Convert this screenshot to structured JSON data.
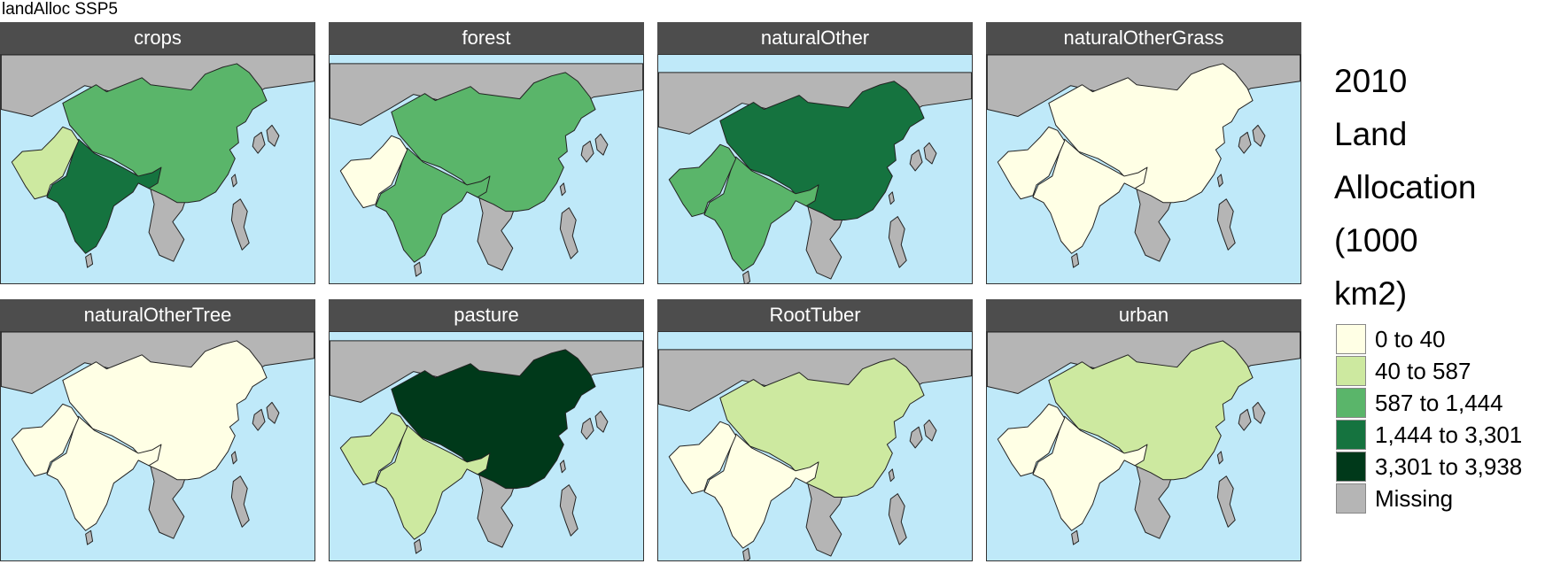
{
  "title": "landAlloc SSP5",
  "legend": {
    "title_lines": [
      "2010",
      "Land",
      "Allocation",
      "(1000",
      "km2)"
    ],
    "items": [
      {
        "label": "0 to 40",
        "color": "#ffffe5"
      },
      {
        "label": "40 to 587",
        "color": "#cde9a0"
      },
      {
        "label": "587 to 1,444",
        "color": "#5ab56a"
      },
      {
        "label": "1,444 to 3,301",
        "color": "#15733f"
      },
      {
        "label": "3,301 to 3,938",
        "color": "#00391a"
      },
      {
        "label": "Missing",
        "color": "#b5b5b5"
      }
    ]
  },
  "colors": {
    "ocean": "#bfe9f9",
    "land": "#b5b5b5",
    "border": "#222222"
  },
  "panels": [
    {
      "name": "crops",
      "china": 2,
      "india": 3,
      "pakistan": 1
    },
    {
      "name": "forest",
      "china": 2,
      "india": 2,
      "pakistan": 0
    },
    {
      "name": "naturalOther",
      "china": 3,
      "india": 2,
      "pakistan": 2
    },
    {
      "name": "naturalOtherGrass",
      "china": 0,
      "india": 0,
      "pakistan": 0
    },
    {
      "name": "naturalOtherTree",
      "china": 0,
      "india": 0,
      "pakistan": 0
    },
    {
      "name": "pasture",
      "china": 4,
      "india": 1,
      "pakistan": 1
    },
    {
      "name": "RootTuber",
      "china": 1,
      "india": 0,
      "pakistan": 0
    },
    {
      "name": "urban",
      "china": 1,
      "india": 0,
      "pakistan": 0
    }
  ]
}
